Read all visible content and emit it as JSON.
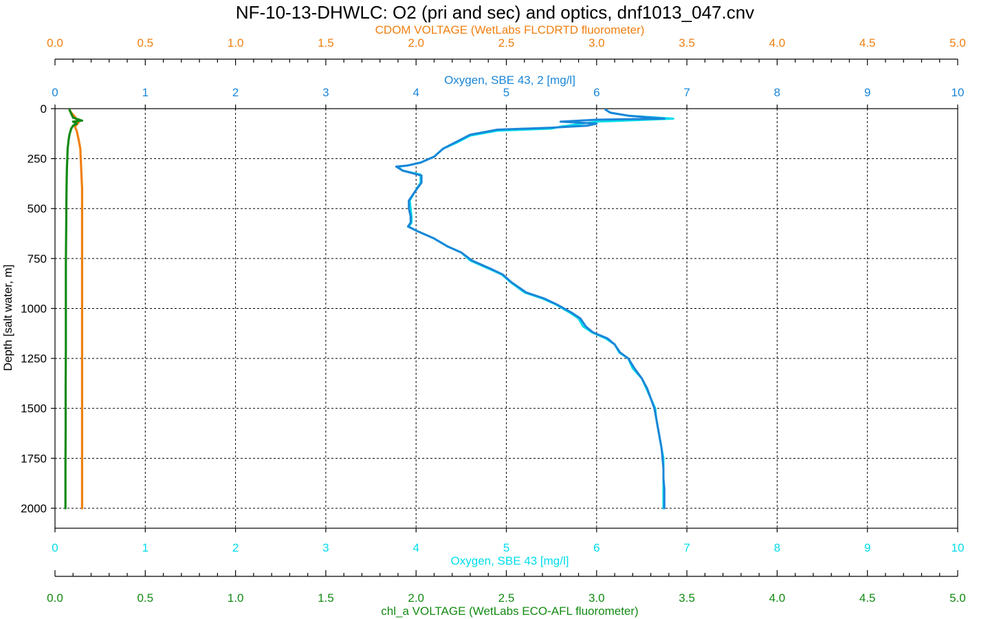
{
  "chart_data": {
    "type": "line",
    "title": "NF-10-13-DHWLC: O2 (pri and sec) and optics, dnf1013_047.cnv",
    "ylabel": "Depth [salt water, m]",
    "ylim": [
      2100,
      0
    ],
    "y_ticks": [
      0,
      250,
      500,
      750,
      1000,
      1250,
      1500,
      1750,
      2000
    ],
    "grid": true,
    "axes": [
      {
        "id": "cdom",
        "position": "top-outer",
        "label": "CDOM VOLTAGE (WetLabs FLCDRTD fluorometer)",
        "range": [
          0,
          5
        ],
        "ticks": [
          "0.0",
          "0.5",
          "1.0",
          "1.5",
          "2.0",
          "2.5",
          "3.0",
          "3.5",
          "4.0",
          "4.5",
          "5.0"
        ],
        "minor_step": 0.1,
        "color": "#f07f10"
      },
      {
        "id": "oxy2",
        "position": "top-inner",
        "label": "Oxygen, SBE 43, 2 [mg/l]",
        "range": [
          0,
          10
        ],
        "ticks": [
          "0",
          "1",
          "2",
          "3",
          "4",
          "5",
          "6",
          "7",
          "8",
          "9",
          "10"
        ],
        "color": "#1a86d8"
      },
      {
        "id": "oxy1",
        "position": "bottom-inner",
        "label": "Oxygen, SBE 43 [mg/l]",
        "range": [
          0,
          10
        ],
        "ticks": [
          "0",
          "1",
          "2",
          "3",
          "4",
          "5",
          "6",
          "7",
          "8",
          "9",
          "10"
        ],
        "color": "#00dcea"
      },
      {
        "id": "chl",
        "position": "bottom-outer",
        "label": "chl_a VOLTAGE (WetLabs ECO-AFL fluorometer)",
        "range": [
          0,
          5
        ],
        "ticks": [
          "0.0",
          "0.5",
          "1.0",
          "1.5",
          "2.0",
          "2.5",
          "3.0",
          "3.5",
          "4.0",
          "4.5",
          "5.0"
        ],
        "minor_step": 0.1,
        "color": "#138a13"
      }
    ],
    "series": [
      {
        "axis": "oxy1",
        "color": "#00dcea",
        "points": [
          [
            6.1,
            5
          ],
          [
            6.15,
            20
          ],
          [
            6.35,
            35
          ],
          [
            6.85,
            50
          ],
          [
            6.0,
            65
          ],
          [
            5.6,
            90
          ],
          [
            5.5,
            100
          ],
          [
            4.9,
            110
          ],
          [
            4.6,
            135
          ],
          [
            4.45,
            170
          ],
          [
            4.3,
            200
          ],
          [
            4.2,
            240
          ],
          [
            4.05,
            270
          ],
          [
            3.9,
            285
          ],
          [
            3.8,
            290
          ],
          [
            3.85,
            310
          ],
          [
            4.05,
            330
          ],
          [
            4.05,
            370
          ],
          [
            3.98,
            420
          ],
          [
            3.93,
            460
          ],
          [
            3.94,
            500
          ],
          [
            3.95,
            540
          ],
          [
            3.95,
            570
          ],
          [
            3.92,
            590
          ],
          [
            4.0,
            610
          ],
          [
            4.2,
            650
          ],
          [
            4.35,
            690
          ],
          [
            4.5,
            720
          ],
          [
            4.6,
            760
          ],
          [
            4.8,
            800
          ],
          [
            4.95,
            830
          ],
          [
            5.05,
            870
          ],
          [
            5.2,
            920
          ],
          [
            5.4,
            950
          ],
          [
            5.55,
            980
          ],
          [
            5.7,
            1020
          ],
          [
            5.8,
            1050
          ],
          [
            5.85,
            1090
          ],
          [
            5.95,
            1120
          ],
          [
            6.1,
            1150
          ],
          [
            6.2,
            1180
          ],
          [
            6.25,
            1220
          ],
          [
            6.35,
            1250
          ],
          [
            6.4,
            1300
          ],
          [
            6.5,
            1350
          ],
          [
            6.55,
            1400
          ],
          [
            6.6,
            1450
          ],
          [
            6.65,
            1500
          ],
          [
            6.66,
            1550
          ],
          [
            6.68,
            1600
          ],
          [
            6.7,
            1650
          ],
          [
            6.72,
            1700
          ],
          [
            6.74,
            1750
          ],
          [
            6.74,
            1800
          ],
          [
            6.74,
            1850
          ],
          [
            6.74,
            1900
          ],
          [
            6.74,
            1950
          ],
          [
            6.74,
            2000
          ]
        ]
      },
      {
        "axis": "oxy2",
        "color": "#1a86d8",
        "points": [
          [
            6.1,
            5
          ],
          [
            6.15,
            20
          ],
          [
            6.35,
            35
          ],
          [
            6.75,
            50
          ],
          [
            6.0,
            55
          ],
          [
            5.6,
            65
          ],
          [
            6.0,
            75
          ],
          [
            5.9,
            85
          ],
          [
            5.5,
            95
          ],
          [
            4.9,
            105
          ],
          [
            4.6,
            130
          ],
          [
            4.45,
            165
          ],
          [
            4.3,
            200
          ],
          [
            4.2,
            240
          ],
          [
            4.05,
            270
          ],
          [
            3.9,
            285
          ],
          [
            3.78,
            290
          ],
          [
            3.85,
            310
          ],
          [
            4.06,
            335
          ],
          [
            4.06,
            370
          ],
          [
            3.98,
            420
          ],
          [
            3.92,
            460
          ],
          [
            3.92,
            500
          ],
          [
            3.94,
            540
          ],
          [
            3.94,
            570
          ],
          [
            3.91,
            590
          ],
          [
            4.0,
            610
          ],
          [
            4.2,
            650
          ],
          [
            4.35,
            690
          ],
          [
            4.5,
            720
          ],
          [
            4.62,
            760
          ],
          [
            4.82,
            800
          ],
          [
            4.96,
            830
          ],
          [
            5.06,
            870
          ],
          [
            5.22,
            920
          ],
          [
            5.42,
            950
          ],
          [
            5.56,
            980
          ],
          [
            5.72,
            1020
          ],
          [
            5.82,
            1050
          ],
          [
            5.88,
            1090
          ],
          [
            5.96,
            1120
          ],
          [
            6.12,
            1150
          ],
          [
            6.2,
            1180
          ],
          [
            6.26,
            1220
          ],
          [
            6.35,
            1250
          ],
          [
            6.42,
            1300
          ],
          [
            6.5,
            1350
          ],
          [
            6.56,
            1400
          ],
          [
            6.6,
            1450
          ],
          [
            6.64,
            1500
          ],
          [
            6.66,
            1550
          ],
          [
            6.68,
            1600
          ],
          [
            6.7,
            1650
          ],
          [
            6.72,
            1700
          ],
          [
            6.73,
            1750
          ],
          [
            6.74,
            1800
          ],
          [
            6.74,
            1850
          ],
          [
            6.75,
            1900
          ],
          [
            6.75,
            1950
          ],
          [
            6.75,
            2000
          ]
        ]
      },
      {
        "axis": "cdom",
        "color": "#f07f10",
        "points": [
          [
            0.08,
            5
          ],
          [
            0.09,
            20
          ],
          [
            0.11,
            40
          ],
          [
            0.13,
            70
          ],
          [
            0.11,
            90
          ],
          [
            0.12,
            110
          ],
          [
            0.13,
            150
          ],
          [
            0.14,
            200
          ],
          [
            0.145,
            300
          ],
          [
            0.15,
            400
          ],
          [
            0.15,
            500
          ],
          [
            0.15,
            600
          ],
          [
            0.15,
            700
          ],
          [
            0.15,
            800
          ],
          [
            0.15,
            900
          ],
          [
            0.15,
            1000
          ],
          [
            0.15,
            1200
          ],
          [
            0.15,
            1400
          ],
          [
            0.15,
            1600
          ],
          [
            0.15,
            1800
          ],
          [
            0.15,
            2000
          ]
        ]
      },
      {
        "axis": "chl",
        "color": "#138a13",
        "points": [
          [
            0.08,
            5
          ],
          [
            0.09,
            25
          ],
          [
            0.1,
            45
          ],
          [
            0.15,
            60
          ],
          [
            0.1,
            65
          ],
          [
            0.12,
            75
          ],
          [
            0.1,
            85
          ],
          [
            0.09,
            100
          ],
          [
            0.08,
            130
          ],
          [
            0.075,
            160
          ],
          [
            0.07,
            200
          ],
          [
            0.068,
            250
          ],
          [
            0.066,
            300
          ],
          [
            0.064,
            400
          ],
          [
            0.063,
            500
          ],
          [
            0.062,
            600
          ],
          [
            0.061,
            700
          ],
          [
            0.06,
            800
          ],
          [
            0.06,
            1000
          ],
          [
            0.06,
            1200
          ],
          [
            0.059,
            1400
          ],
          [
            0.059,
            1600
          ],
          [
            0.058,
            1800
          ],
          [
            0.058,
            2000
          ]
        ]
      }
    ]
  }
}
